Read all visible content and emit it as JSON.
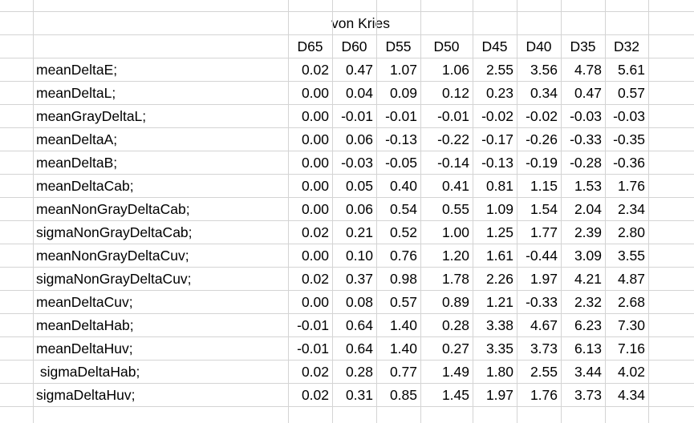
{
  "title": "von Kries",
  "headers": [
    "D65",
    "D60",
    "D55",
    "D50",
    "D45",
    "D40",
    "D35",
    "D32"
  ],
  "rows": [
    {
      "label": "meanDeltaE;",
      "values": [
        "0.02",
        "0.47",
        "1.07",
        "1.06",
        "2.55",
        "3.56",
        "4.78",
        "5.61"
      ]
    },
    {
      "label": "meanDeltaL;",
      "values": [
        "0.00",
        "0.04",
        "0.09",
        "0.12",
        "0.23",
        "0.34",
        "0.47",
        "0.57"
      ]
    },
    {
      "label": "meanGrayDeltaL;",
      "values": [
        "0.00",
        "-0.01",
        "-0.01",
        "-0.01",
        "-0.02",
        "-0.02",
        "-0.03",
        "-0.03"
      ]
    },
    {
      "label": "meanDeltaA;",
      "values": [
        "0.00",
        "0.06",
        "-0.13",
        "-0.22",
        "-0.17",
        "-0.26",
        "-0.33",
        "-0.35"
      ]
    },
    {
      "label": "meanDeltaB;",
      "values": [
        "0.00",
        "-0.03",
        "-0.05",
        "-0.14",
        "-0.13",
        "-0.19",
        "-0.28",
        "-0.36"
      ]
    },
    {
      "label": "meanDeltaCab;",
      "values": [
        "0.00",
        "0.05",
        "0.40",
        "0.41",
        "0.81",
        "1.15",
        "1.53",
        "1.76"
      ]
    },
    {
      "label": "meanNonGrayDeltaCab;",
      "values": [
        "0.00",
        "0.06",
        "0.54",
        "0.55",
        "1.09",
        "1.54",
        "2.04",
        "2.34"
      ]
    },
    {
      "label": "sigmaNonGrayDeltaCab;",
      "values": [
        "0.02",
        "0.21",
        "0.52",
        "1.00",
        "1.25",
        "1.77",
        "2.39",
        "2.80"
      ]
    },
    {
      "label": "meanNonGrayDeltaCuv;",
      "values": [
        "0.00",
        "0.10",
        "0.76",
        "1.20",
        "1.61",
        "-0.44",
        "3.09",
        "3.55"
      ]
    },
    {
      "label": "sigmaNonGrayDeltaCuv;",
      "values": [
        "0.02",
        "0.37",
        "0.98",
        "1.78",
        "2.26",
        "1.97",
        "4.21",
        "4.87"
      ]
    },
    {
      "label": "meanDeltaCuv;",
      "values": [
        "0.00",
        "0.08",
        "0.57",
        "0.89",
        "1.21",
        "-0.33",
        "2.32",
        "2.68"
      ]
    },
    {
      "label": "meanDeltaHab;",
      "values": [
        "-0.01",
        "0.64",
        "1.40",
        "0.28",
        "3.38",
        "4.67",
        "6.23",
        "7.30"
      ]
    },
    {
      "label": "meanDeltaHuv;",
      "values": [
        "-0.01",
        "0.64",
        "1.40",
        "0.27",
        "3.35",
        "3.73",
        "6.13",
        "7.16"
      ]
    },
    {
      "label": " sigmaDeltaHab;",
      "values": [
        "0.02",
        "0.28",
        "0.77",
        "1.49",
        "1.80",
        "2.55",
        "3.44",
        "4.02"
      ]
    },
    {
      "label": "sigmaDeltaHuv;",
      "values": [
        "0.02",
        "0.31",
        "0.85",
        "1.45",
        "1.97",
        "1.76",
        "3.73",
        "4.34"
      ]
    }
  ],
  "colors": {
    "gridline": "#d4d4d4",
    "text": "#000000",
    "background": "#ffffff"
  }
}
